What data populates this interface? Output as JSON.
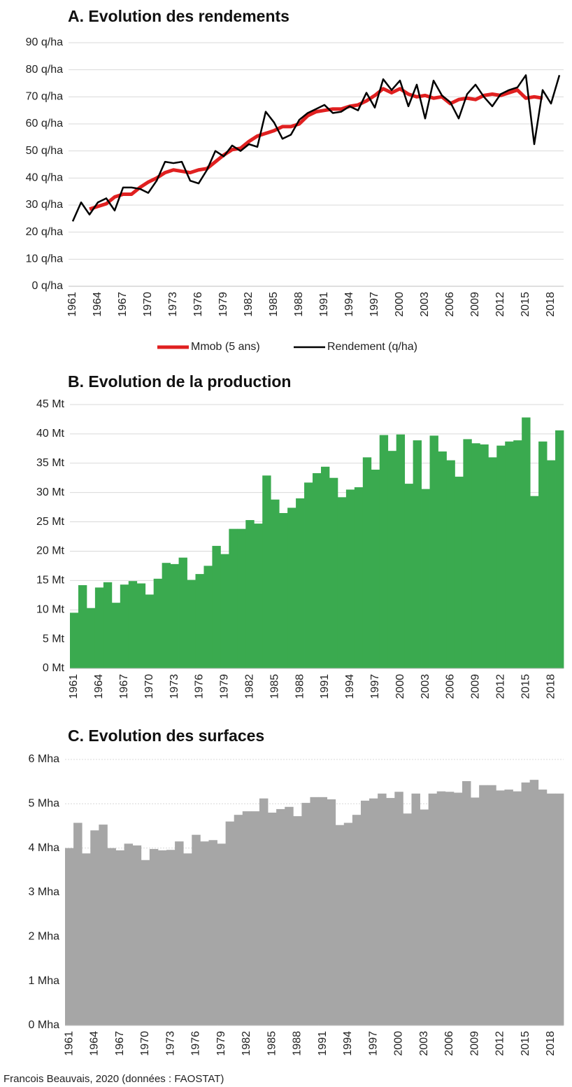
{
  "chart_data": [
    {
      "type": "line",
      "title": "A. Evolution des rendements",
      "categories": [
        "1961",
        null,
        null,
        "1964",
        null,
        null,
        "1967",
        null,
        null,
        "1970",
        null,
        null,
        "1973",
        null,
        null,
        "1976",
        null,
        null,
        "1979",
        null,
        null,
        "1982",
        null,
        null,
        "1985",
        null,
        null,
        "1988",
        null,
        null,
        "1991",
        null,
        null,
        "1994",
        null,
        null,
        "1997",
        null,
        null,
        "2000",
        null,
        null,
        "2003",
        null,
        null,
        "2006",
        null,
        null,
        "2009",
        null,
        null,
        "2012",
        null,
        null,
        "2015",
        null,
        null,
        "2018",
        null
      ],
      "series": [
        {
          "name": "Mmob (5 ans)",
          "color": "#e02020",
          "values": [
            null,
            null,
            28.5,
            29.5,
            30.5,
            33,
            34,
            34,
            36.5,
            38.5,
            40,
            42,
            43,
            42.5,
            42,
            43,
            43.5,
            46,
            48.5,
            50.5,
            51,
            53.5,
            55.5,
            56.5,
            57.5,
            59,
            59,
            60,
            63,
            64.5,
            65,
            65.5,
            65.5,
            66.5,
            67,
            68.5,
            70.5,
            73,
            71.5,
            73,
            71,
            70,
            70.5,
            69.5,
            70,
            67.5,
            69,
            69.5,
            69,
            70.5,
            71,
            70.5,
            71.5,
            72.5,
            69.5,
            70,
            69.5,
            null,
            null
          ]
        },
        {
          "name": "Rendement (q/ha)",
          "color": "#000000",
          "values": [
            24,
            31,
            26.5,
            31,
            32.5,
            28,
            36.5,
            36.5,
            36,
            34.5,
            39,
            46,
            45.5,
            46,
            39,
            38,
            43,
            50,
            48,
            52,
            50,
            52.5,
            51.5,
            64.5,
            60.5,
            54.5,
            56,
            61.5,
            64,
            65.5,
            67,
            64,
            64.5,
            66.5,
            65,
            71.5,
            66,
            76.5,
            72.5,
            76,
            66.5,
            74.5,
            62,
            76,
            70.5,
            68,
            62,
            71,
            74.5,
            70,
            66.5,
            71,
            72.5,
            73.5,
            78,
            52.5,
            72.5,
            67.5,
            78
          ]
        }
      ],
      "ylim": [
        0,
        90
      ],
      "yticks": [
        {
          "value": 0,
          "label": "0 q/ha"
        },
        {
          "value": 10,
          "label": "10 q/ha"
        },
        {
          "value": 20,
          "label": "20 q/ha"
        },
        {
          "value": 30,
          "label": "30 q/ha"
        },
        {
          "value": 40,
          "label": "40 q/ha"
        },
        {
          "value": 50,
          "label": "50 q/ha"
        },
        {
          "value": 60,
          "label": "60 q/ha"
        },
        {
          "value": 70,
          "label": "70 q/ha"
        },
        {
          "value": 80,
          "label": "80 q/ha"
        },
        {
          "value": 90,
          "label": "90 q/ha"
        }
      ],
      "grid": true,
      "legend": "bottom"
    },
    {
      "type": "bar",
      "title": "B. Evolution de la production",
      "categories": [
        "1961",
        null,
        null,
        "1964",
        null,
        null,
        "1967",
        null,
        null,
        "1970",
        null,
        null,
        "1973",
        null,
        null,
        "1976",
        null,
        null,
        "1979",
        null,
        null,
        "1982",
        null,
        null,
        "1985",
        null,
        null,
        "1988",
        null,
        null,
        "1991",
        null,
        null,
        "1994",
        null,
        null,
        "1997",
        null,
        null,
        "2000",
        null,
        null,
        "2003",
        null,
        null,
        "2006",
        null,
        null,
        "2009",
        null,
        null,
        "2012",
        null,
        null,
        "2015",
        null,
        null,
        "2018",
        null
      ],
      "values": [
        9.5,
        14.2,
        10.3,
        13.8,
        14.7,
        11.2,
        14.3,
        14.9,
        14.5,
        12.6,
        15.3,
        18,
        17.8,
        18.9,
        15.1,
        16.1,
        17.5,
        20.9,
        19.5,
        23.8,
        23.8,
        25.3,
        24.7,
        32.9,
        28.8,
        26.5,
        27.4,
        29,
        31.7,
        33.3,
        34.4,
        32.5,
        29.2,
        30.5,
        30.9,
        36,
        33.9,
        39.8,
        37.1,
        39.9,
        31.5,
        38.9,
        30.6,
        39.7,
        37,
        35.5,
        32.7,
        39.1,
        38.4,
        38.2,
        36,
        38,
        38.7,
        38.9,
        42.8,
        29.4,
        38.7,
        35.5,
        40.6
      ],
      "color": "#3aaa4f",
      "ylim": [
        0,
        45
      ],
      "yticks": [
        {
          "value": 0,
          "label": "0 Mt"
        },
        {
          "value": 5,
          "label": "5 Mt"
        },
        {
          "value": 10,
          "label": "10 Mt"
        },
        {
          "value": 15,
          "label": "15 Mt"
        },
        {
          "value": 20,
          "label": "20 Mt"
        },
        {
          "value": 25,
          "label": "25 Mt"
        },
        {
          "value": 30,
          "label": "30 Mt"
        },
        {
          "value": 35,
          "label": "35 Mt"
        },
        {
          "value": 40,
          "label": "40 Mt"
        },
        {
          "value": 45,
          "label": "45 Mt"
        }
      ],
      "grid": true
    },
    {
      "type": "bar",
      "title": "C. Evolution des surfaces",
      "categories": [
        "1961",
        null,
        null,
        "1964",
        null,
        null,
        "1967",
        null,
        null,
        "1970",
        null,
        null,
        "1973",
        null,
        null,
        "1976",
        null,
        null,
        "1979",
        null,
        null,
        "1982",
        null,
        null,
        "1985",
        null,
        null,
        "1988",
        null,
        null,
        "1991",
        null,
        null,
        "1994",
        null,
        null,
        "1997",
        null,
        null,
        "2000",
        null,
        null,
        "2003",
        null,
        null,
        "2006",
        null,
        null,
        "2009",
        null,
        null,
        "2012",
        null,
        null,
        "2015",
        null,
        null,
        "2018",
        null
      ],
      "values": [
        4.0,
        4.57,
        3.88,
        4.4,
        4.53,
        4.0,
        3.95,
        4.1,
        4.06,
        3.73,
        3.98,
        3.95,
        3.96,
        4.15,
        3.88,
        4.3,
        4.15,
        4.18,
        4.1,
        4.6,
        4.75,
        4.83,
        4.83,
        5.12,
        4.8,
        4.88,
        4.93,
        4.72,
        5.02,
        5.15,
        5.15,
        5.1,
        4.52,
        4.57,
        4.75,
        5.07,
        5.12,
        5.23,
        5.13,
        5.27,
        4.78,
        5.23,
        4.87,
        5.23,
        5.28,
        5.27,
        5.25,
        5.51,
        5.14,
        5.42,
        5.42,
        5.3,
        5.32,
        5.28,
        5.48,
        5.54,
        5.32,
        5.23,
        5.23
      ],
      "color": "#a6a6a6",
      "ylim": [
        0,
        6
      ],
      "yticks": [
        {
          "value": 0,
          "label": "0 Mha"
        },
        {
          "value": 1,
          "label": "1 Mha"
        },
        {
          "value": 2,
          "label": "2 Mha"
        },
        {
          "value": 3,
          "label": "3 Mha"
        },
        {
          "value": 4,
          "label": "4 Mha"
        },
        {
          "value": 5,
          "label": "5 Mha"
        },
        {
          "value": 6,
          "label": "6 Mha"
        }
      ],
      "grid": true
    }
  ],
  "source": "Francois Beauvais, 2020 (données : FAOSTAT)"
}
